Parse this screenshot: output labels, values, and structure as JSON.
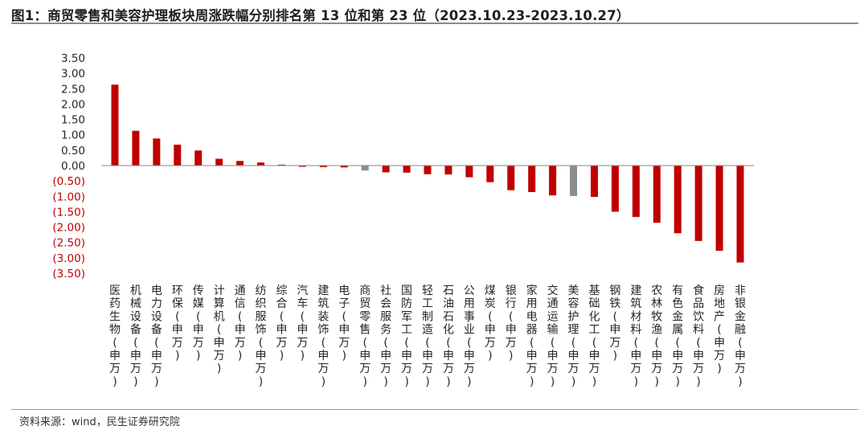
{
  "title": "图1：商贸零售和美容护理板块周涨跌幅分别排名第 13 位和第 23 位（2023.10.23-2023.10.27）",
  "source": "资料来源：wind，民生证券研究院",
  "watermark": "",
  "colors": {
    "bar": "#c00000",
    "highlight": "#8c8c8c",
    "positive_tick": "#262626",
    "negative_tick": "#c00000",
    "axis": "#888888"
  },
  "chart_data": {
    "type": "bar",
    "title": "",
    "xlabel": "",
    "ylabel": "",
    "ylim": [
      -3.5,
      3.5
    ],
    "y_ticks": [
      "3.50",
      "3.00",
      "2.50",
      "2.00",
      "1.50",
      "1.00",
      "0.50",
      "0.00",
      "(0.50)",
      "(1.00)",
      "(1.50)",
      "(2.00)",
      "(2.50)",
      "(3.00)",
      "(3.50)"
    ],
    "y_tick_values": [
      3.5,
      3.0,
      2.5,
      2.0,
      1.5,
      1.0,
      0.5,
      0.0,
      -0.5,
      -1.0,
      -1.5,
      -2.0,
      -2.5,
      -3.0,
      -3.5
    ],
    "categories": [
      "医药生物(申万)",
      "机械设备(申万)",
      "电力设备(申万)",
      "环保(申万)",
      "传媒(申万)",
      "计算机(申万)",
      "通信(申万)",
      "纺织服饰(申万)",
      "综合(申万)",
      "汽车(申万)",
      "建筑装饰(申万)",
      "电子(申万)",
      "商贸零售(申万)",
      "社会服务(申万)",
      "国防军工(申万)",
      "轻工制造(申万)",
      "石油石化(申万)",
      "公用事业(申万)",
      "煤炭(申万)",
      "银行(申万)",
      "家用电器(申万)",
      "交通运输(申万)",
      "美容护理(申万)",
      "基础化工(申万)",
      "钢铁(申万)",
      "建筑材料(申万)",
      "农林牧渔(申万)",
      "有色金属(申万)",
      "食品饮料(申万)",
      "房地产(申万)",
      "非银金融(申万)"
    ],
    "values": [
      2.63,
      1.13,
      0.88,
      0.68,
      0.49,
      0.22,
      0.15,
      0.1,
      0.03,
      -0.04,
      -0.05,
      -0.06,
      -0.16,
      -0.22,
      -0.23,
      -0.28,
      -0.29,
      -0.38,
      -0.54,
      -0.8,
      -0.86,
      -0.97,
      -0.99,
      -1.02,
      -1.5,
      -1.67,
      -1.86,
      -2.2,
      -2.45,
      -2.77,
      -3.15
    ],
    "highlighted": [
      "商贸零售(申万)",
      "美容护理(申万)"
    ],
    "grid": false,
    "legend": "none"
  }
}
